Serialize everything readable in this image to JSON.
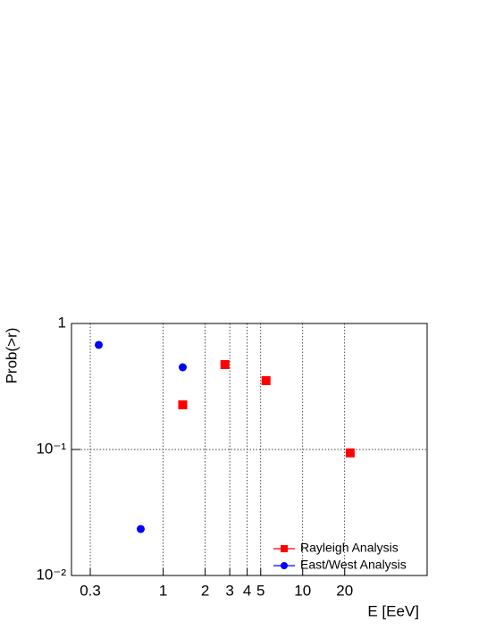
{
  "chart_data": {
    "type": "scatter",
    "x_label": "E [EeV]",
    "y_label": "Prob(>r)",
    "log_x": true,
    "log_y": true,
    "grid": true,
    "legend": "lower right",
    "xlim": [
      0.22,
      78
    ],
    "ylim": [
      0.01,
      1
    ],
    "xticks": [
      0.3,
      1,
      2,
      3,
      4,
      5,
      10,
      20
    ],
    "yticks": [
      {
        "value": 0.01,
        "label": "10⁻²"
      },
      {
        "value": 0.1,
        "label": "10⁻¹"
      },
      1
    ],
    "series": [
      {
        "name": "Rayleigh Analysis",
        "color": "#ff0000",
        "marker": "square",
        "x": [
          1.38,
          2.77,
          5.46,
          21.9
        ],
        "values": [
          0.226,
          0.472,
          0.352,
          0.094
        ]
      },
      {
        "name": "East/West Analysis",
        "color": "#0000ff",
        "marker": "circle",
        "x": [
          0.345,
          0.69,
          1.38
        ],
        "values": [
          0.676,
          0.0234,
          0.449
        ]
      }
    ]
  }
}
